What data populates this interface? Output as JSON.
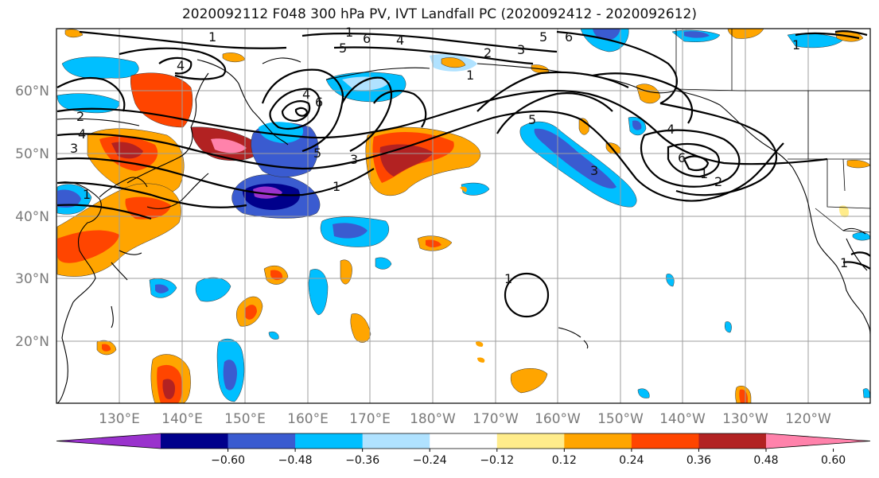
{
  "title": "2020092112 F048 300 hPa PV, IVT Landfall PC (2020092412 - 2020092612)",
  "lon_labels": [
    "130°E",
    "140°E",
    "150°E",
    "160°E",
    "170°E",
    "180°W",
    "170°W",
    "160°W",
    "150°W",
    "140°W",
    "130°W",
    "120°W"
  ],
  "lat_labels": [
    "60°N",
    "50°N",
    "40°N",
    "30°N",
    "20°N"
  ],
  "colorbar": {
    "tick_labels": [
      "−0.60",
      "−0.48",
      "−0.36",
      "−0.24",
      "−0.12",
      "0.12",
      "0.24",
      "0.36",
      "0.48",
      "0.60"
    ],
    "colors": [
      "#9a32cd",
      "#00008b",
      "#3a5bd0",
      "#00bfff",
      "#b0e2ff",
      "#ffffff",
      "#ffec8b",
      "#ffa500",
      "#ff4500",
      "#b22222",
      "#ff82ab"
    ]
  },
  "contour_labels": [
    "1",
    "2",
    "3",
    "4",
    "5",
    "6",
    "1",
    "2",
    "3",
    "4",
    "5",
    "6",
    "1",
    "2",
    "3",
    "4",
    "5",
    "6",
    "1",
    "1",
    "1",
    "1",
    "1",
    "1"
  ]
}
